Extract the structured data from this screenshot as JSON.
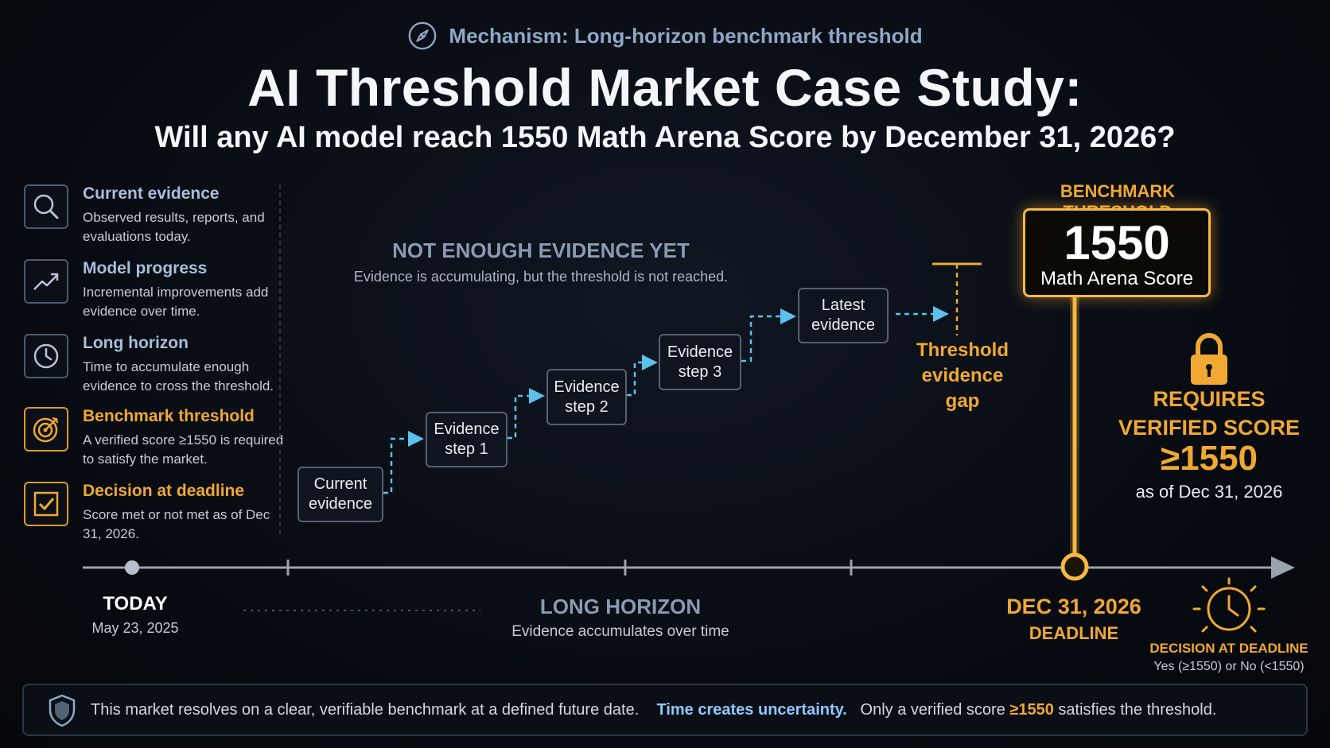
{
  "header": {
    "mechanism": "Mechanism: Long-horizon benchmark threshold",
    "title": "AI Threshold Market Case Study:",
    "subtitle": "Will any AI model reach 1550 Math Arena Score by December 31, 2026?"
  },
  "sidebar": {
    "items": [
      {
        "title": "Current evidence",
        "desc": "Observed results, reports, and evaluations today.",
        "icon": "search-icon"
      },
      {
        "title": "Model progress",
        "desc": "Incremental improvements add evidence over time.",
        "icon": "trend-up-icon"
      },
      {
        "title": "Long horizon",
        "desc": "Time to accumulate enough evidence to cross the threshold.",
        "icon": "clock-icon"
      },
      {
        "title": "Benchmark threshold",
        "desc": "A verified score ≥1550 is required to satisfy the market.",
        "icon": "target-icon"
      },
      {
        "title": "Decision at deadline",
        "desc": "Score met or not met as of Dec 31, 2026.",
        "icon": "checkbox-icon"
      }
    ]
  },
  "evidence": {
    "title": "NOT ENOUGH EVIDENCE YET",
    "desc": "Evidence is accumulating, but the threshold is not reached.",
    "steps": [
      {
        "line1": "Current",
        "line2": "evidence"
      },
      {
        "line1": "Evidence",
        "line2": "step 1"
      },
      {
        "line1": "Evidence",
        "line2": "step 2"
      },
      {
        "line1": "Evidence",
        "line2": "step 3"
      },
      {
        "line1": "Latest",
        "line2": "evidence"
      }
    ],
    "gap": {
      "line1": "Threshold",
      "line2": "evidence",
      "line3": "gap"
    }
  },
  "threshold": {
    "label": "BENCHMARK THRESHOLD",
    "value": "1550",
    "unit": "Math Arena Score",
    "requires": {
      "line1": "REQUIRES",
      "line2": "VERIFIED SCORE",
      "value": "≥1550",
      "asof": "as of Dec 31, 2026"
    }
  },
  "timeline": {
    "today": {
      "label": "TODAY",
      "date": "May 23, 2025"
    },
    "horizon": {
      "title": "LONG HORIZON",
      "desc": "Evidence accumulates over time"
    },
    "deadline": {
      "date": "DEC 31, 2026",
      "label": "DEADLINE"
    },
    "decision": {
      "label": "DECISION AT DEADLINE",
      "desc": "Yes (≥1550) or No (<1550)"
    }
  },
  "footer": {
    "part1": "This market resolves on a clear, verifiable benchmark at a defined future date.",
    "part2": "Time creates uncertainty.",
    "part3": "Only a verified score",
    "part4": "≥1550",
    "part5": "satisfies the threshold."
  },
  "colors": {
    "accent_gold": "#f0a832",
    "accent_blue": "#5bc0eb",
    "title_blue": "#a9bddb"
  }
}
